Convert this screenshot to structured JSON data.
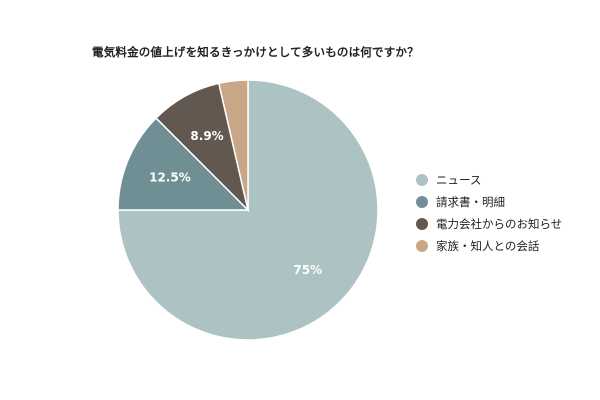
{
  "chart_data": {
    "type": "pie",
    "title": "電気料金の値上げを知るきっかけとして多いものは何ですか？",
    "categories": [
      "ニュース",
      "請求書・明細",
      "電力会社からのお知らせ",
      "家族・知人との会話"
    ],
    "values": [
      75,
      12.5,
      8.9,
      3.6
    ],
    "data_labels": [
      "75%",
      "12.5%",
      "8.9%",
      ""
    ],
    "colors": [
      "#adc2c2",
      "#6f8f94",
      "#625850",
      "#c8a786"
    ],
    "legend_position": "right",
    "start_angle": "top",
    "direction": "clockwise"
  }
}
